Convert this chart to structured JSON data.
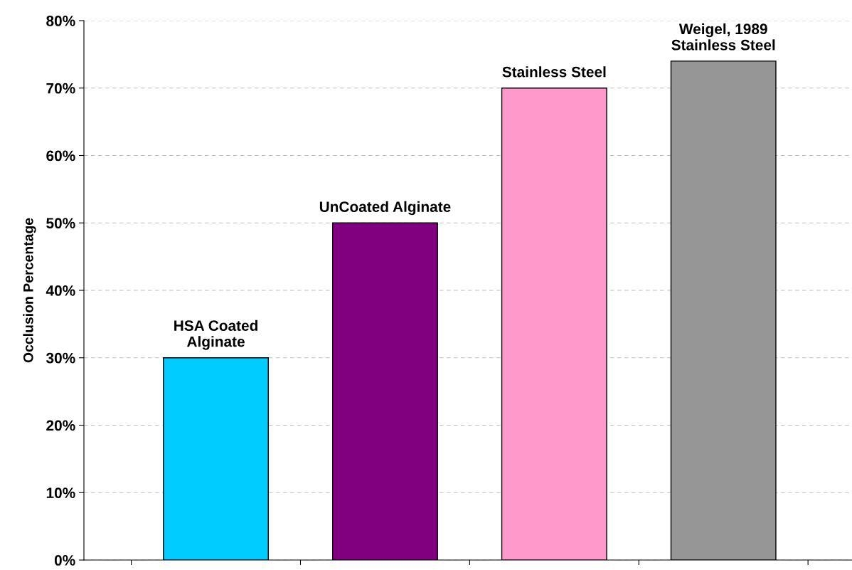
{
  "chart_data": {
    "type": "bar",
    "ylabel": "Occlusion Percentage",
    "categories": [
      "HSA Coated\nAlginate",
      "UnCoated Alginate",
      "Stainless Steel",
      "Weigel, 1989\nStainless Steel"
    ],
    "values": [
      30,
      50,
      70,
      74
    ],
    "colors": [
      "#00ccff",
      "#800080",
      "#ff99cc",
      "#969696"
    ],
    "ylim": [
      0,
      80
    ],
    "yticks": [
      {
        "value": 0,
        "label": "0%"
      },
      {
        "value": 10,
        "label": "10%"
      },
      {
        "value": 20,
        "label": "20%"
      },
      {
        "value": 30,
        "label": "30%"
      },
      {
        "value": 40,
        "label": "40%"
      },
      {
        "value": 50,
        "label": "50%"
      },
      {
        "value": 60,
        "label": "60%"
      },
      {
        "value": 70,
        "label": "70%"
      },
      {
        "value": 80,
        "label": "80%"
      }
    ],
    "grid": "y",
    "tick_labels": "y",
    "legend": false
  }
}
